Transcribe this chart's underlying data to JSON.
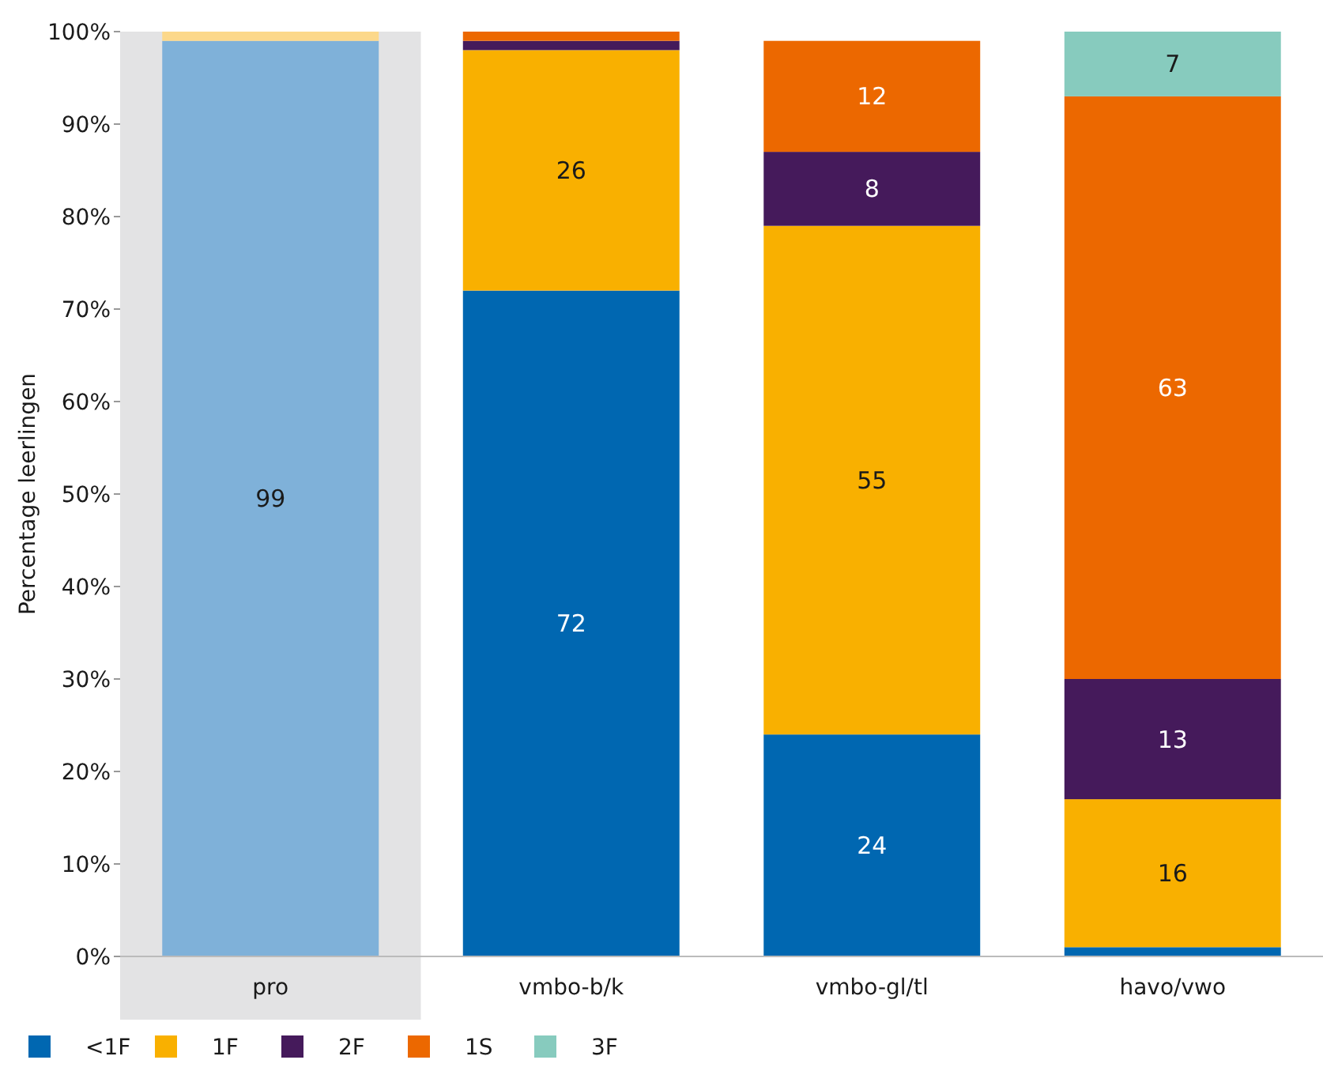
{
  "chart_data": {
    "type": "bar",
    "stacked": true,
    "ylabel": "Percentage leerlingen",
    "categories": [
      "pro",
      "vmbo-b/k",
      "vmbo-gl/tl",
      "havo/vwo"
    ],
    "series": [
      {
        "name": "<1F",
        "color": "#0067b1",
        "colors": [
          "#7fb1d9",
          "#0067b1",
          "#0067b1",
          "#0067b1"
        ],
        "values": [
          99,
          72,
          24,
          1
        ],
        "value_labels": [
          "99",
          "72",
          "24",
          null
        ]
      },
      {
        "name": "1F",
        "color": "#f9b000",
        "colors": [
          "#fcd88a",
          "#f9b000",
          "#f9b000",
          "#f9b000"
        ],
        "values": [
          1,
          26,
          55,
          16
        ],
        "value_labels": [
          null,
          "26",
          "55",
          "16"
        ]
      },
      {
        "name": "2F",
        "color": "#451a5b",
        "values": [
          0,
          1,
          8,
          13
        ],
        "value_labels": [
          null,
          null,
          "8",
          "13"
        ]
      },
      {
        "name": "1S",
        "color": "#ec6800",
        "values": [
          0,
          1,
          12,
          63
        ],
        "value_labels": [
          null,
          null,
          "12",
          "63"
        ]
      },
      {
        "name": "3F",
        "color": "#87cbbe",
        "values": [
          0,
          0,
          0,
          7
        ],
        "value_labels": [
          null,
          null,
          null,
          "7"
        ]
      }
    ],
    "ylim": [
      0,
      100
    ],
    "yticks": [
      {
        "value": 0,
        "label": "0%"
      },
      {
        "value": 10,
        "label": "10%"
      },
      {
        "value": 20,
        "label": "20%"
      },
      {
        "value": 30,
        "label": "30%"
      },
      {
        "value": 40,
        "label": "40%"
      },
      {
        "value": 50,
        "label": "50%"
      },
      {
        "value": 60,
        "label": "60%"
      },
      {
        "value": 70,
        "label": "70%"
      },
      {
        "value": 80,
        "label": "80%"
      },
      {
        "value": 90,
        "label": "90%"
      },
      {
        "value": 100,
        "label": "100%"
      }
    ],
    "bands": [
      {
        "axis": "x",
        "from": "pro",
        "to": "pro",
        "color": "#e3e3e4"
      }
    ],
    "grid": false,
    "legend": "bottom left"
  }
}
